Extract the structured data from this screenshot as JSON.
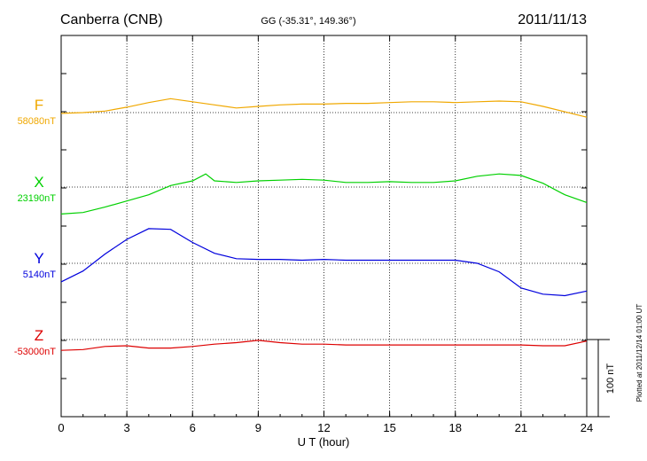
{
  "header": {
    "station": "Canberra (CNB)",
    "coords": "GG (-35.31°, 149.36°)",
    "date": "2011/11/13"
  },
  "footer": {
    "plotted_note": "Plotted at 2011/12/14 01:00 UT"
  },
  "chart_data": {
    "type": "line",
    "xlabel": "U T (hour)",
    "xlim": [
      0,
      24
    ],
    "x_ticks": [
      0,
      3,
      6,
      9,
      12,
      15,
      18,
      21,
      24
    ],
    "grid": true,
    "scale_bar": {
      "label": "100 nT",
      "nT": 100
    },
    "series": [
      {
        "name": "F",
        "baseline_label": "58080nT",
        "color": "#f0a800",
        "points": [
          [
            0,
            58079
          ],
          [
            1,
            58080
          ],
          [
            2,
            58082
          ],
          [
            3,
            58087
          ],
          [
            4,
            58093
          ],
          [
            5,
            58098
          ],
          [
            6,
            58094
          ],
          [
            7,
            58090
          ],
          [
            8,
            58086
          ],
          [
            9,
            58088
          ],
          [
            10,
            58090
          ],
          [
            11,
            58091
          ],
          [
            12,
            58091
          ],
          [
            13,
            58092
          ],
          [
            14,
            58092
          ],
          [
            15,
            58093
          ],
          [
            16,
            58094
          ],
          [
            17,
            58094
          ],
          [
            18,
            58093
          ],
          [
            19,
            58094
          ],
          [
            20,
            58095
          ],
          [
            21,
            58094
          ],
          [
            22,
            58088
          ],
          [
            23,
            58081
          ],
          [
            24,
            58074
          ]
        ]
      },
      {
        "name": "X",
        "baseline_label": "23190nT",
        "color": "#00d000",
        "points": [
          [
            0,
            23155
          ],
          [
            1,
            23157
          ],
          [
            2,
            23164
          ],
          [
            3,
            23172
          ],
          [
            4,
            23180
          ],
          [
            5,
            23192
          ],
          [
            6,
            23198
          ],
          [
            6.6,
            23207
          ],
          [
            7,
            23198
          ],
          [
            8,
            23196
          ],
          [
            9,
            23198
          ],
          [
            10,
            23199
          ],
          [
            11,
            23200
          ],
          [
            12,
            23199
          ],
          [
            13,
            23196
          ],
          [
            14,
            23196
          ],
          [
            15,
            23197
          ],
          [
            16,
            23196
          ],
          [
            17,
            23196
          ],
          [
            18,
            23198
          ],
          [
            19,
            23204
          ],
          [
            20,
            23207
          ],
          [
            21,
            23205
          ],
          [
            22,
            23195
          ],
          [
            23,
            23180
          ],
          [
            24,
            23170
          ]
        ]
      },
      {
        "name": "Y",
        "baseline_label": "5140nT",
        "color": "#0000dd",
        "points": [
          [
            0,
            5116
          ],
          [
            1,
            5130
          ],
          [
            2,
            5152
          ],
          [
            3,
            5171
          ],
          [
            4,
            5185
          ],
          [
            5,
            5184
          ],
          [
            6,
            5167
          ],
          [
            7,
            5153
          ],
          [
            8,
            5146
          ],
          [
            9,
            5145
          ],
          [
            10,
            5145
          ],
          [
            11,
            5144
          ],
          [
            12,
            5145
          ],
          [
            13,
            5144
          ],
          [
            14,
            5144
          ],
          [
            15,
            5144
          ],
          [
            16,
            5144
          ],
          [
            17,
            5144
          ],
          [
            18,
            5144
          ],
          [
            19,
            5140
          ],
          [
            20,
            5129
          ],
          [
            21,
            5108
          ],
          [
            22,
            5100
          ],
          [
            23,
            5098
          ],
          [
            24,
            5104
          ]
        ]
      },
      {
        "name": "Z",
        "baseline_label": "-53000nT",
        "color": "#dd0000",
        "points": [
          [
            0,
            -53014
          ],
          [
            1,
            -53013
          ],
          [
            2,
            -53009
          ],
          [
            3,
            -53008
          ],
          [
            4,
            -53011
          ],
          [
            5,
            -53011
          ],
          [
            6,
            -53009
          ],
          [
            7,
            -53006
          ],
          [
            8,
            -53004
          ],
          [
            9,
            -53001
          ],
          [
            10,
            -53004
          ],
          [
            11,
            -53006
          ],
          [
            12,
            -53006
          ],
          [
            13,
            -53007
          ],
          [
            14,
            -53007
          ],
          [
            15,
            -53007
          ],
          [
            16,
            -53007
          ],
          [
            17,
            -53007
          ],
          [
            18,
            -53007
          ],
          [
            19,
            -53007
          ],
          [
            20,
            -53007
          ],
          [
            21,
            -53007
          ],
          [
            22,
            -53008
          ],
          [
            23,
            -53008
          ],
          [
            24,
            -53002
          ]
        ]
      }
    ]
  }
}
